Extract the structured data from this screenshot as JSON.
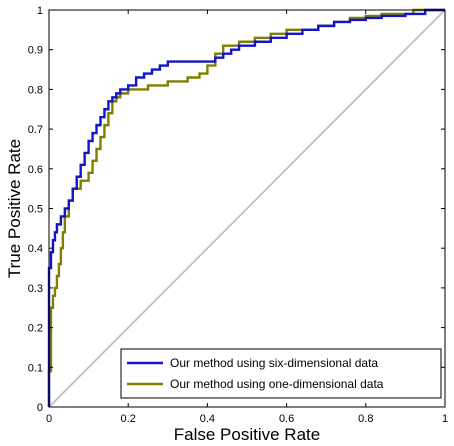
{
  "chart_data": {
    "type": "line",
    "title": "",
    "xlabel": "False Positive Rate",
    "ylabel": "True Positive Rate",
    "xlim": [
      0,
      1
    ],
    "ylim": [
      0,
      1
    ],
    "xticks": [
      0,
      0.2,
      0.4,
      0.6,
      0.8,
      1
    ],
    "xtick_labels": [
      "0",
      "0.2",
      "0.4",
      "0.6",
      "0.8",
      "1"
    ],
    "yticks": [
      0,
      0.1,
      0.2,
      0.3,
      0.4,
      0.5,
      0.6,
      0.7,
      0.8,
      0.9,
      1
    ],
    "ytick_labels": [
      "0",
      "0.1",
      "0.2",
      "0.3",
      "0.4",
      "0.5",
      "0.6",
      "0.7",
      "0.8",
      "0.9",
      "1"
    ],
    "grid": false,
    "legend_position": "bottom-right",
    "reference_line": {
      "x": [
        0,
        1
      ],
      "y": [
        0,
        1
      ],
      "color": "#bfbfbf"
    },
    "series": [
      {
        "name": "Our method using six-dimensional data",
        "color": "#1414c8",
        "x": [
          0,
          0,
          0.005,
          0.005,
          0.01,
          0.01,
          0.015,
          0.015,
          0.02,
          0.02,
          0.03,
          0.03,
          0.04,
          0.04,
          0.05,
          0.05,
          0.06,
          0.06,
          0.07,
          0.07,
          0.08,
          0.08,
          0.09,
          0.09,
          0.1,
          0.1,
          0.11,
          0.11,
          0.12,
          0.12,
          0.13,
          0.13,
          0.14,
          0.14,
          0.15,
          0.15,
          0.16,
          0.16,
          0.17,
          0.17,
          0.18,
          0.18,
          0.2,
          0.2,
          0.22,
          0.22,
          0.24,
          0.24,
          0.26,
          0.26,
          0.28,
          0.28,
          0.3,
          0.3,
          0.34,
          0.34,
          0.38,
          0.38,
          0.42,
          0.42,
          0.44,
          0.44,
          0.46,
          0.46,
          0.48,
          0.48,
          0.52,
          0.52,
          0.56,
          0.56,
          0.6,
          0.6,
          0.64,
          0.64,
          0.68,
          0.68,
          0.72,
          0.72,
          0.76,
          0.76,
          0.8,
          0.8,
          0.84,
          0.84,
          0.9,
          0.9,
          0.95,
          0.95,
          1.0
        ],
        "y": [
          0,
          0.35,
          0.35,
          0.39,
          0.39,
          0.42,
          0.42,
          0.44,
          0.44,
          0.46,
          0.46,
          0.48,
          0.48,
          0.5,
          0.5,
          0.52,
          0.52,
          0.55,
          0.55,
          0.58,
          0.58,
          0.61,
          0.61,
          0.64,
          0.64,
          0.67,
          0.67,
          0.69,
          0.69,
          0.71,
          0.71,
          0.73,
          0.73,
          0.75,
          0.75,
          0.77,
          0.77,
          0.78,
          0.78,
          0.79,
          0.79,
          0.8,
          0.8,
          0.81,
          0.81,
          0.83,
          0.83,
          0.84,
          0.84,
          0.85,
          0.85,
          0.86,
          0.86,
          0.87,
          0.87,
          0.87,
          0.87,
          0.87,
          0.87,
          0.88,
          0.88,
          0.89,
          0.89,
          0.9,
          0.9,
          0.91,
          0.91,
          0.92,
          0.92,
          0.93,
          0.93,
          0.94,
          0.94,
          0.95,
          0.95,
          0.96,
          0.96,
          0.97,
          0.97,
          0.975,
          0.975,
          0.98,
          0.98,
          0.985,
          0.985,
          0.99,
          0.99,
          1.0,
          1.0
        ]
      },
      {
        "name": "Our method using one-dimensional data",
        "color": "#808000",
        "x": [
          0,
          0,
          0.005,
          0.005,
          0.01,
          0.01,
          0.015,
          0.015,
          0.02,
          0.02,
          0.025,
          0.025,
          0.03,
          0.03,
          0.035,
          0.035,
          0.04,
          0.04,
          0.05,
          0.05,
          0.06,
          0.06,
          0.07,
          0.07,
          0.08,
          0.08,
          0.1,
          0.1,
          0.11,
          0.11,
          0.12,
          0.12,
          0.13,
          0.13,
          0.14,
          0.14,
          0.15,
          0.15,
          0.16,
          0.16,
          0.17,
          0.17,
          0.18,
          0.18,
          0.2,
          0.2,
          0.25,
          0.25,
          0.3,
          0.3,
          0.35,
          0.35,
          0.38,
          0.38,
          0.4,
          0.4,
          0.42,
          0.42,
          0.44,
          0.44,
          0.48,
          0.48,
          0.52,
          0.52,
          0.56,
          0.56,
          0.6,
          0.6,
          0.64,
          0.64,
          0.68,
          0.68,
          0.72,
          0.72,
          0.76,
          0.76,
          0.8,
          0.8,
          0.84,
          0.84,
          0.88,
          0.88,
          0.92,
          0.92,
          0.96,
          0.96,
          1.0
        ],
        "y": [
          0,
          0.09,
          0.09,
          0.25,
          0.25,
          0.28,
          0.28,
          0.3,
          0.3,
          0.33,
          0.33,
          0.36,
          0.36,
          0.4,
          0.4,
          0.44,
          0.44,
          0.48,
          0.48,
          0.52,
          0.52,
          0.55,
          0.55,
          0.55,
          0.55,
          0.57,
          0.57,
          0.59,
          0.59,
          0.62,
          0.62,
          0.65,
          0.65,
          0.68,
          0.68,
          0.71,
          0.71,
          0.74,
          0.74,
          0.77,
          0.77,
          0.78,
          0.78,
          0.79,
          0.79,
          0.8,
          0.8,
          0.81,
          0.81,
          0.82,
          0.82,
          0.83,
          0.83,
          0.84,
          0.84,
          0.86,
          0.86,
          0.89,
          0.89,
          0.91,
          0.91,
          0.92,
          0.92,
          0.93,
          0.93,
          0.94,
          0.94,
          0.95,
          0.95,
          0.95,
          0.95,
          0.96,
          0.96,
          0.97,
          0.97,
          0.98,
          0.98,
          0.985,
          0.985,
          0.99,
          0.99,
          0.99,
          0.99,
          1.0,
          1.0,
          1.0,
          1.0
        ]
      }
    ]
  }
}
